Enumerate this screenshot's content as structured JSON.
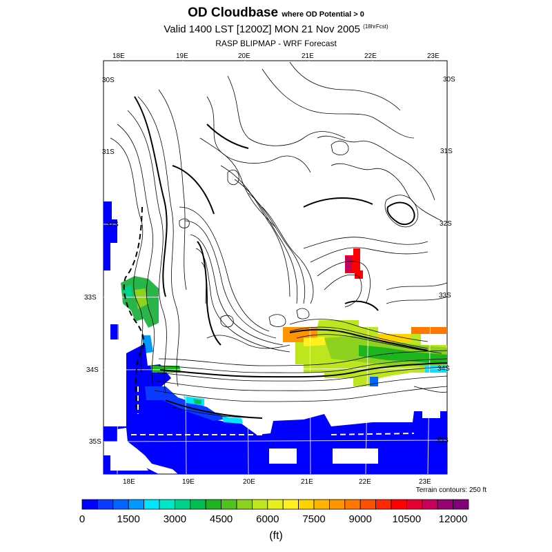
{
  "title": {
    "main": "OD Cloudbase",
    "main_suffix": "where OD Potential > 0",
    "valid": "Valid 1400 LST [1200Z] MON 21 Nov 2005",
    "valid_suffix": "(18hrFcst)",
    "model": "RASP BLIPMAP - WRF Forecast"
  },
  "map": {
    "lon_labels_top": [
      "18E",
      "19E",
      "20E",
      "21E",
      "22E",
      "23E"
    ],
    "lon_labels_bottom": [
      "18E",
      "19E",
      "20E",
      "21E",
      "22E",
      "23E"
    ],
    "lat_labels_left": [
      "30S",
      "31S",
      "32S",
      "33S",
      "34S",
      "35S"
    ],
    "lat_labels_right": [
      "30S",
      "31S",
      "32S",
      "33S",
      "34S",
      "35S"
    ],
    "terrain_note": "Terrain contours: 250 ft"
  },
  "colorbar": {
    "colors": [
      "#0000ff",
      "#0a3cff",
      "#0066ff",
      "#0099ff",
      "#00e5ff",
      "#00e6c8",
      "#00d28c",
      "#00be50",
      "#1eb41e",
      "#50c31e",
      "#8cd21e",
      "#bee61e",
      "#e6f01e",
      "#fff01e",
      "#ffd200",
      "#ffb400",
      "#ff9600",
      "#ff7800",
      "#ff5000",
      "#ff2800",
      "#ff0000",
      "#e60032",
      "#c8005a",
      "#9b0073",
      "#820078"
    ],
    "tick_labels": [
      "0",
      "1500",
      "3000",
      "4500",
      "6000",
      "7500",
      "9000",
      "10500",
      "12000"
    ],
    "units": "(ft)"
  }
}
